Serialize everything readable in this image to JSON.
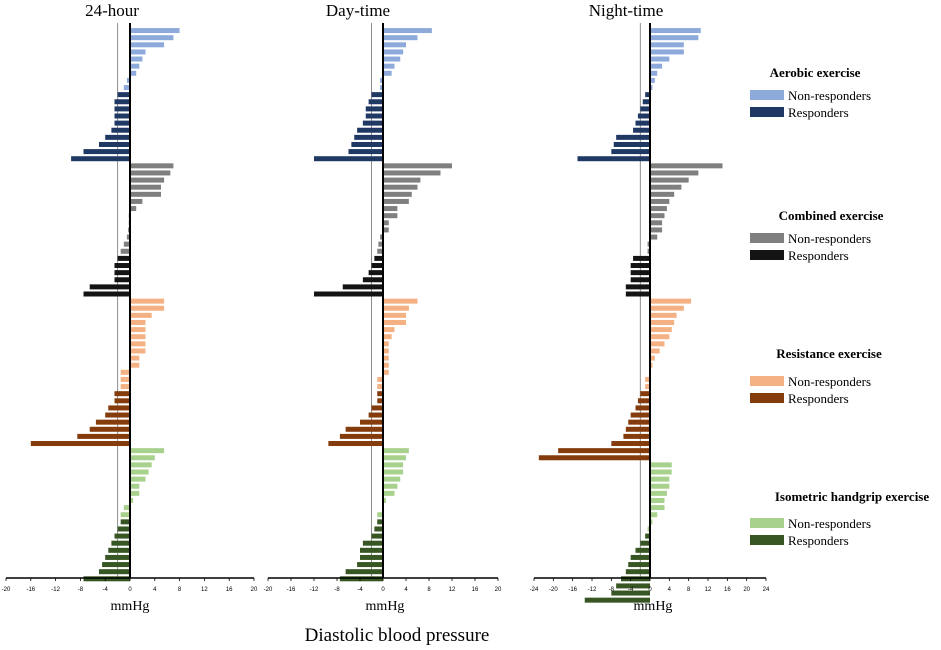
{
  "chart_data": {
    "type": "bar",
    "orientation": "horizontal",
    "title": "Diastolic blood pressure",
    "xlabel": "Diastolic blood pressure",
    "colors": {
      "aerobic_nonresp": "#8eaadb",
      "aerobic_resp": "#1f3864",
      "combined_nonresp": "#7f7f7f",
      "combined_resp": "#141414",
      "resistance_nonresp": "#f4b183",
      "resistance_resp": "#843c0c",
      "isometric_nonresp": "#a9d18e",
      "isometric_resp": "#375623"
    },
    "legend": [
      {
        "group": "Aerobic exercise",
        "items": [
          {
            "label": "Non-responders",
            "color": "#8eaadb"
          },
          {
            "label": "Responders",
            "color": "#1f3864"
          }
        ]
      },
      {
        "group": "Combined exercise",
        "items": [
          {
            "label": "Non-responders",
            "color": "#7f7f7f"
          },
          {
            "label": "Responders",
            "color": "#141414"
          }
        ]
      },
      {
        "group": "Resistance exercise",
        "items": [
          {
            "label": "Non-responders",
            "color": "#f4b183"
          },
          {
            "label": "Responders",
            "color": "#843c0c"
          }
        ]
      },
      {
        "group": "Isometric handgrip exercise",
        "items": [
          {
            "label": "Non-responders",
            "color": "#a9d18e"
          },
          {
            "label": "Responders",
            "color": "#375623"
          }
        ]
      }
    ],
    "panels": [
      {
        "title": "24-hour",
        "xlabel": "mmHg",
        "xlim": [
          -20,
          20
        ],
        "xticks": [
          "-20",
          "-16",
          "-12",
          "-8",
          "-4",
          "0",
          "4",
          "8",
          "12",
          "16",
          "20"
        ],
        "threshold": -2,
        "groups": [
          {
            "name": "Aerobic exercise",
            "nonresponders": [
              8.0,
              7.0,
              5.5,
              2.5,
              2.0,
              1.5,
              1.0,
              -0.5,
              -1.0
            ],
            "responders": [
              -2.0,
              -2.5,
              -2.5,
              -2.5,
              -2.5,
              -3.0,
              -4.0,
              -5.0,
              -7.5,
              -9.5
            ]
          },
          {
            "name": "Combined exercise",
            "nonresponders": [
              7.0,
              6.5,
              5.5,
              5.0,
              5.0,
              2.0,
              1.0,
              -0.2,
              -0.2,
              -0.3,
              -0.5,
              -1.0,
              -1.5
            ],
            "responders": [
              -2.0,
              -2.5,
              -2.5,
              -2.5,
              -6.5,
              -7.5
            ]
          },
          {
            "name": "Resistance exercise",
            "nonresponders": [
              5.5,
              5.5,
              3.5,
              2.5,
              2.5,
              2.5,
              2.5,
              2.5,
              1.5,
              1.5,
              -1.5,
              -1.5,
              -1.5
            ],
            "responders": [
              -2.5,
              -2.5,
              -3.5,
              -4.0,
              -5.5,
              -6.5,
              -8.5,
              -16.0
            ]
          },
          {
            "name": "Isometric handgrip exercise",
            "nonresponders": [
              5.5,
              4.0,
              3.5,
              3.0,
              2.5,
              1.5,
              1.5,
              0.5,
              -1.0,
              -1.5
            ],
            "responders": [
              -1.5,
              -2.0,
              -2.5,
              -3.0,
              -3.5,
              -4.0,
              -4.5,
              -5.0,
              -7.5
            ]
          }
        ]
      },
      {
        "title": "Day-time",
        "xlabel": "mmHg",
        "xlim": [
          -20,
          20
        ],
        "xticks": [
          "-20",
          "-16",
          "-12",
          "-8",
          "-4",
          "0",
          "4",
          "8",
          "12",
          "16",
          "20"
        ],
        "threshold": -2,
        "groups": [
          {
            "name": "Aerobic exercise",
            "nonresponders": [
              8.5,
              6.0,
              4.0,
              3.5,
              3.0,
              2.0,
              1.5,
              -0.5,
              -0.5
            ],
            "responders": [
              -2.0,
              -2.5,
              -3.0,
              -3.0,
              -3.5,
              -4.5,
              -5.0,
              -5.5,
              -6.0,
              -12.0
            ]
          },
          {
            "name": "Combined exercise",
            "nonresponders": [
              12.0,
              10.0,
              6.5,
              6.0,
              5.0,
              4.5,
              2.5,
              2.5,
              1.0,
              1.0,
              -0.5,
              -0.8,
              -1.0
            ],
            "responders": [
              -1.5,
              -2.0,
              -2.5,
              -3.5,
              -7.0,
              -12.0
            ]
          },
          {
            "name": "Resistance exercise",
            "nonresponders": [
              6.0,
              4.5,
              4.0,
              4.0,
              2.0,
              1.5,
              1.0,
              1.0,
              1.0,
              1.0,
              1.0,
              -1.0,
              -1.0
            ],
            "responders": [
              -1.0,
              -1.0,
              -2.0,
              -2.5,
              -4.0,
              -6.5,
              -7.5,
              -9.5
            ]
          },
          {
            "name": "Isometric handgrip exercise",
            "nonresponders": [
              4.5,
              4.0,
              3.5,
              3.5,
              3.0,
              2.5,
              2.0,
              0.5,
              0.0,
              -1.0
            ],
            "responders": [
              -1.0,
              -1.5,
              -2.0,
              -3.5,
              -4.0,
              -4.0,
              -4.5,
              -6.5,
              -7.5
            ]
          }
        ]
      },
      {
        "title": "Night-time",
        "xlabel": "mmHg",
        "xlim": [
          -24,
          24
        ],
        "xticks": [
          "-24",
          "-20",
          "-16",
          "-12",
          "-8",
          "-4",
          "0",
          "4",
          "8",
          "12",
          "16",
          "20",
          "24"
        ],
        "threshold": -2,
        "groups": [
          {
            "name": "Aerobic exercise",
            "nonresponders": [
              10.5,
              10.0,
              7.0,
              7.0,
              4.0,
              2.5,
              1.5,
              1.0,
              0.5
            ],
            "responders": [
              -1.0,
              -1.5,
              -2.0,
              -2.5,
              -3.0,
              -3.5,
              -7.0,
              -7.5,
              -8.0,
              -15.0
            ]
          },
          {
            "name": "Combined exercise",
            "nonresponders": [
              15.0,
              10.0,
              8.0,
              6.5,
              5.0,
              4.0,
              3.5,
              3.0,
              2.5,
              2.5,
              1.5,
              -0.5,
              -0.5
            ],
            "responders": [
              -3.5,
              -4.0,
              -4.0,
              -4.0,
              -5.0,
              -5.0
            ]
          },
          {
            "name": "Resistance exercise",
            "nonresponders": [
              8.5,
              7.0,
              5.5,
              5.0,
              4.5,
              4.0,
              3.0,
              2.0,
              1.0,
              0.5,
              0.0,
              -1.0,
              -1.0
            ],
            "responders": [
              -2.0,
              -2.5,
              -3.0,
              -4.0,
              -4.5,
              -5.0,
              -5.5,
              -8.0,
              -19.0,
              -23.0
            ]
          },
          {
            "name": "Isometric handgrip exercise",
            "nonresponders": [
              4.5,
              4.5,
              4.0,
              4.0,
              3.5,
              3.0,
              3.0,
              1.5,
              0.5,
              -0.5
            ],
            "responders": [
              -1.0,
              -2.0,
              -3.0,
              -4.0,
              -4.5,
              -5.0,
              -6.0,
              -7.0,
              -8.0,
              -13.5
            ]
          }
        ]
      }
    ]
  }
}
